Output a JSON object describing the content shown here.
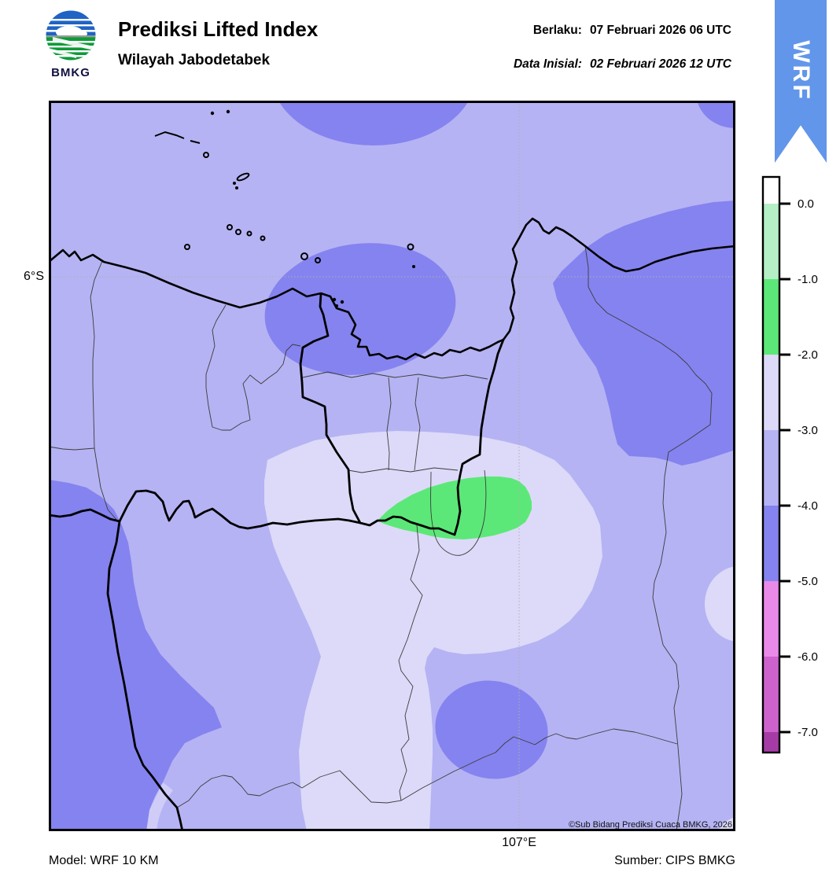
{
  "header": {
    "logo_text": "BMKG",
    "title": "Prediksi Lifted Index",
    "subtitle": "Wilayah Jabodetabek",
    "berlaku_label": "Berlaku:",
    "berlaku_value": "07 Februari 2026 06 UTC",
    "inisial_label": "Data Inisial:",
    "inisial_value": "02 Februari 2026 12 UTC",
    "ribbon_label": "WRF"
  },
  "map": {
    "lat_label": "6°S",
    "lon_label": "107°E",
    "copyright": "©Sub Bidang Prediksi Cuaca BMKG, 2026"
  },
  "colorbar": {
    "tick_labels": [
      "0.0",
      "-1.0",
      "-2.0",
      "-3.0",
      "-4.0",
      "-5.0",
      "-6.0",
      "-7.0"
    ],
    "segment_colors": [
      "#ffffff",
      "#b5efc5",
      "#5ce878",
      "#dcdaf8",
      "#b5b3f3",
      "#8583ef",
      "#e98ae9",
      "#cd62cd",
      "#a53ca5"
    ]
  },
  "footer": {
    "model": "Model: WRF 10 KM",
    "source": "Sumber: CIPS BMKG"
  },
  "chart_data": {
    "type": "heatmap",
    "title": "Prediksi Lifted Index - Wilayah Jabodetabek",
    "variable": "Lifted Index",
    "levels": [
      0.0,
      -1.0,
      -2.0,
      -3.0,
      -4.0,
      -5.0,
      -6.0,
      -7.0
    ],
    "level_colors": [
      "#ffffff",
      "#b5efc5",
      "#5ce878",
      "#dcdaf8",
      "#b5b3f3",
      "#8583ef",
      "#e98ae9",
      "#cd62cd",
      "#a53ca5"
    ],
    "dominant_range": "-3 to -4",
    "notes": "Filled contour map; background mostly -3..-4, darker -4..-5 lobes NW coast/east/southwest/south, pale -2..-3 pocket over Depok-Bogor with -1..-2 green core, gridlines at 6S and 107E"
  },
  "colors": {
    "ribbon_blue": "#6296ea",
    "map_background": "#b5b3f3",
    "dark_band": "#8583ef",
    "pale_band": "#dcdaf8",
    "green_band": "#5ce878"
  }
}
